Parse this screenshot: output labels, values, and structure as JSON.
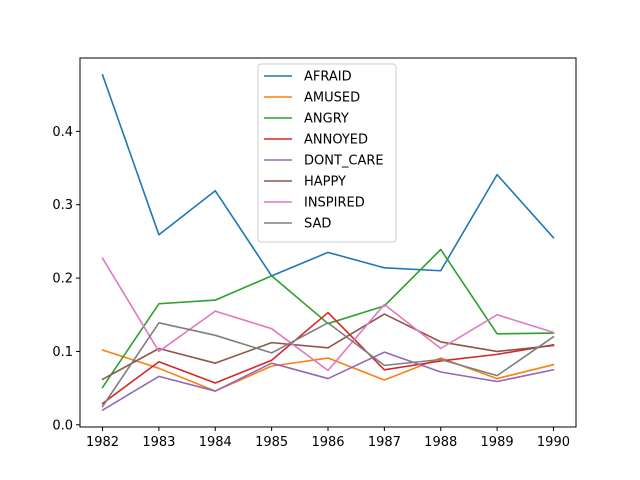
{
  "chart_data": {
    "type": "line",
    "title": "",
    "xlabel": "",
    "ylabel": "",
    "x": [
      1982,
      1983,
      1984,
      1985,
      1986,
      1987,
      1988,
      1989,
      1990
    ],
    "xlim": [
      1981.6,
      1990.4
    ],
    "ylim": [
      -0.003,
      0.5
    ],
    "yticks": [
      0.0,
      0.1,
      0.2,
      0.3,
      0.4
    ],
    "ytick_labels": [
      "0.0",
      "0.1",
      "0.2",
      "0.3",
      "0.4"
    ],
    "grid": false,
    "legend_position": "top-center",
    "series": [
      {
        "name": "AFRAID",
        "color": "#1f77b4",
        "values": [
          0.477,
          0.259,
          0.319,
          0.203,
          0.235,
          0.214,
          0.21,
          0.341,
          0.255
        ]
      },
      {
        "name": "AMUSED",
        "color": "#ff7f0e",
        "values": [
          0.102,
          0.077,
          0.046,
          0.08,
          0.091,
          0.061,
          0.091,
          0.063,
          0.082
        ]
      },
      {
        "name": "ANGRY",
        "color": "#2ca02c",
        "values": [
          0.051,
          0.165,
          0.17,
          0.203,
          0.138,
          0.162,
          0.239,
          0.124,
          0.125
        ]
      },
      {
        "name": "ANNOYED",
        "color": "#d62728",
        "values": [
          0.029,
          0.086,
          0.057,
          0.088,
          0.153,
          0.075,
          0.087,
          0.096,
          0.109
        ]
      },
      {
        "name": "DONT_CARE",
        "color": "#9467bd",
        "values": [
          0.02,
          0.066,
          0.046,
          0.084,
          0.063,
          0.099,
          0.072,
          0.059,
          0.075
        ]
      },
      {
        "name": "HAPPY",
        "color": "#8c564b",
        "values": [
          0.062,
          0.104,
          0.084,
          0.112,
          0.105,
          0.151,
          0.113,
          0.1,
          0.108
        ]
      },
      {
        "name": "INSPIRED",
        "color": "#e377c2",
        "values": [
          0.227,
          0.1,
          0.155,
          0.131,
          0.074,
          0.164,
          0.104,
          0.15,
          0.126
        ]
      },
      {
        "name": "SAD",
        "color": "#7f7f7f",
        "values": [
          0.025,
          0.139,
          0.122,
          0.098,
          0.139,
          0.081,
          0.089,
          0.067,
          0.12
        ]
      }
    ]
  }
}
